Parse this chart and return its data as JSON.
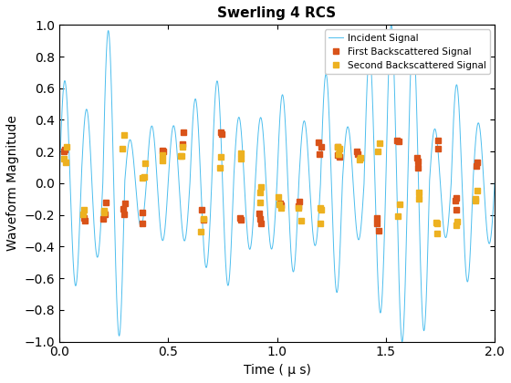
{
  "title": "Swerling 4 RCS",
  "xlabel": "Time ( μ s)",
  "ylabel": "Waveform Magnitude",
  "xlim": [
    0,
    2
  ],
  "ylim": [
    -1,
    1
  ],
  "signal_color": "#4DBEEE",
  "first_bs_color": "#D95319",
  "second_bs_color": "#EDB120",
  "freq_mhz": 10.0,
  "bs_marker": "s",
  "bs_markersize": 4,
  "legend_loc": "upper right",
  "title_fontsize": 11,
  "title_fontweight": "bold",
  "axis_fontsize": 10,
  "xticks": [
    0,
    0.5,
    1.0,
    1.5,
    2.0
  ],
  "yticks": [
    -1.0,
    -0.8,
    -0.6,
    -0.4,
    -0.2,
    0.0,
    0.2,
    0.4,
    0.6,
    0.8,
    1.0
  ]
}
